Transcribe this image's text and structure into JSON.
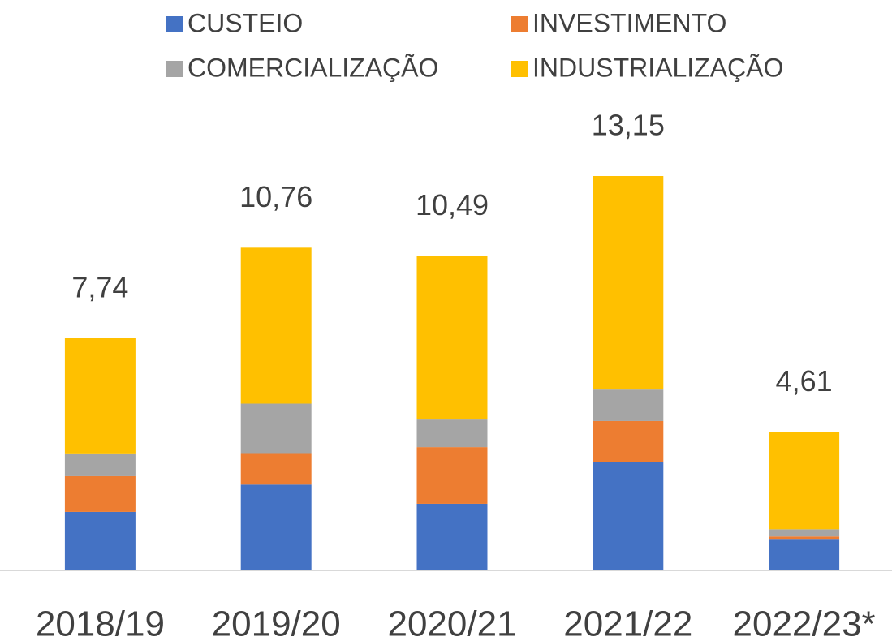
{
  "chart_data": {
    "type": "stacked_bar",
    "categories": [
      "2018/19",
      "2019/20",
      "2020/21",
      "2021/22",
      "2022/23*"
    ],
    "series": [
      {
        "name": "CUSTEIO",
        "color": "#4472c4",
        "values": [
          1.95,
          2.86,
          2.22,
          3.6,
          1.05
        ]
      },
      {
        "name": "INVESTIMENTO",
        "color": "#ed7d31",
        "values": [
          1.19,
          1.05,
          1.89,
          1.38,
          0.08
        ]
      },
      {
        "name": "COMERCIALIZAÇÃO",
        "color": "#a5a5a5",
        "values": [
          0.76,
          1.65,
          0.92,
          1.05,
          0.24
        ]
      },
      {
        "name": "INDUSTRIALIZAÇÃO",
        "color": "#ffc000",
        "values": [
          3.84,
          5.2,
          5.46,
          7.12,
          3.24
        ]
      }
    ],
    "totals": [
      7.74,
      10.76,
      10.49,
      13.15,
      4.61
    ],
    "total_labels": [
      "7,74",
      "10,76",
      "10,49",
      "13,15",
      "4,61"
    ],
    "legend": "top"
  }
}
